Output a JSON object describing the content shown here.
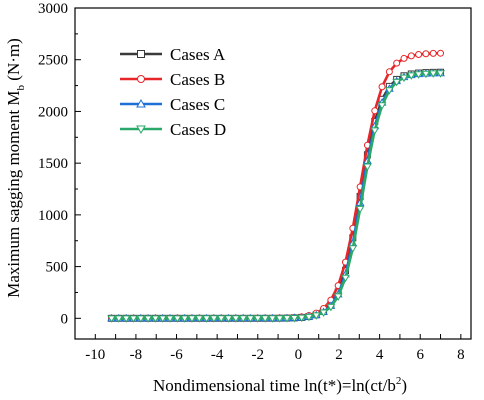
{
  "chart_data": {
    "type": "line",
    "title": "",
    "xlabel_prefix": "Nondimensional time ln(t*)=ln(ct/b",
    "xlabel_sup": "2",
    "xlabel_suffix": ")",
    "ylabel_prefix": "Maximum sagging moment M",
    "ylabel_sub": "b",
    "ylabel_suffix": " (N·m)",
    "xlim": [
      -11,
      8.5
    ],
    "ylim": [
      -200,
      3000
    ],
    "xticks": [
      -10,
      -9,
      -8,
      -7,
      -6,
      -5,
      -4,
      -3,
      -2,
      -1,
      0,
      1,
      2,
      3,
      4,
      5,
      6,
      7,
      8
    ],
    "xtick_labels": [
      "-10",
      "-8",
      "-6",
      "-4",
      "-2",
      "0",
      "2",
      "4",
      "6",
      "8"
    ],
    "xtick_label_values": [
      -10,
      -8,
      -6,
      -4,
      -2,
      0,
      2,
      4,
      6,
      8
    ],
    "yticks": [
      0,
      500,
      1000,
      1500,
      2000,
      2500,
      3000
    ],
    "ytick_labels": [
      "0",
      "500",
      "1000",
      "1500",
      "2000",
      "2500",
      "3000"
    ],
    "grid": false,
    "legend_position": "top-left",
    "x_start": -9.2,
    "x_end": 7.0,
    "x_step": 0.36,
    "series": [
      {
        "name": "Cases A",
        "color": "#3a3a3a",
        "marker": "square",
        "ymax": 2380,
        "k": 1.95,
        "x0": 3.05
      },
      {
        "name": "Cases B",
        "color": "#e8262a",
        "marker": "circle",
        "ymax": 2565,
        "k": 1.8,
        "x0": 3.05
      },
      {
        "name": "Cases C",
        "color": "#1e6fd6",
        "marker": "triangle-up",
        "ymax": 2370,
        "k": 1.95,
        "x0": 3.1
      },
      {
        "name": "Cases D",
        "color": "#2aa86a",
        "marker": "triangle-down",
        "ymax": 2370,
        "k": 1.95,
        "x0": 3.15
      }
    ]
  }
}
